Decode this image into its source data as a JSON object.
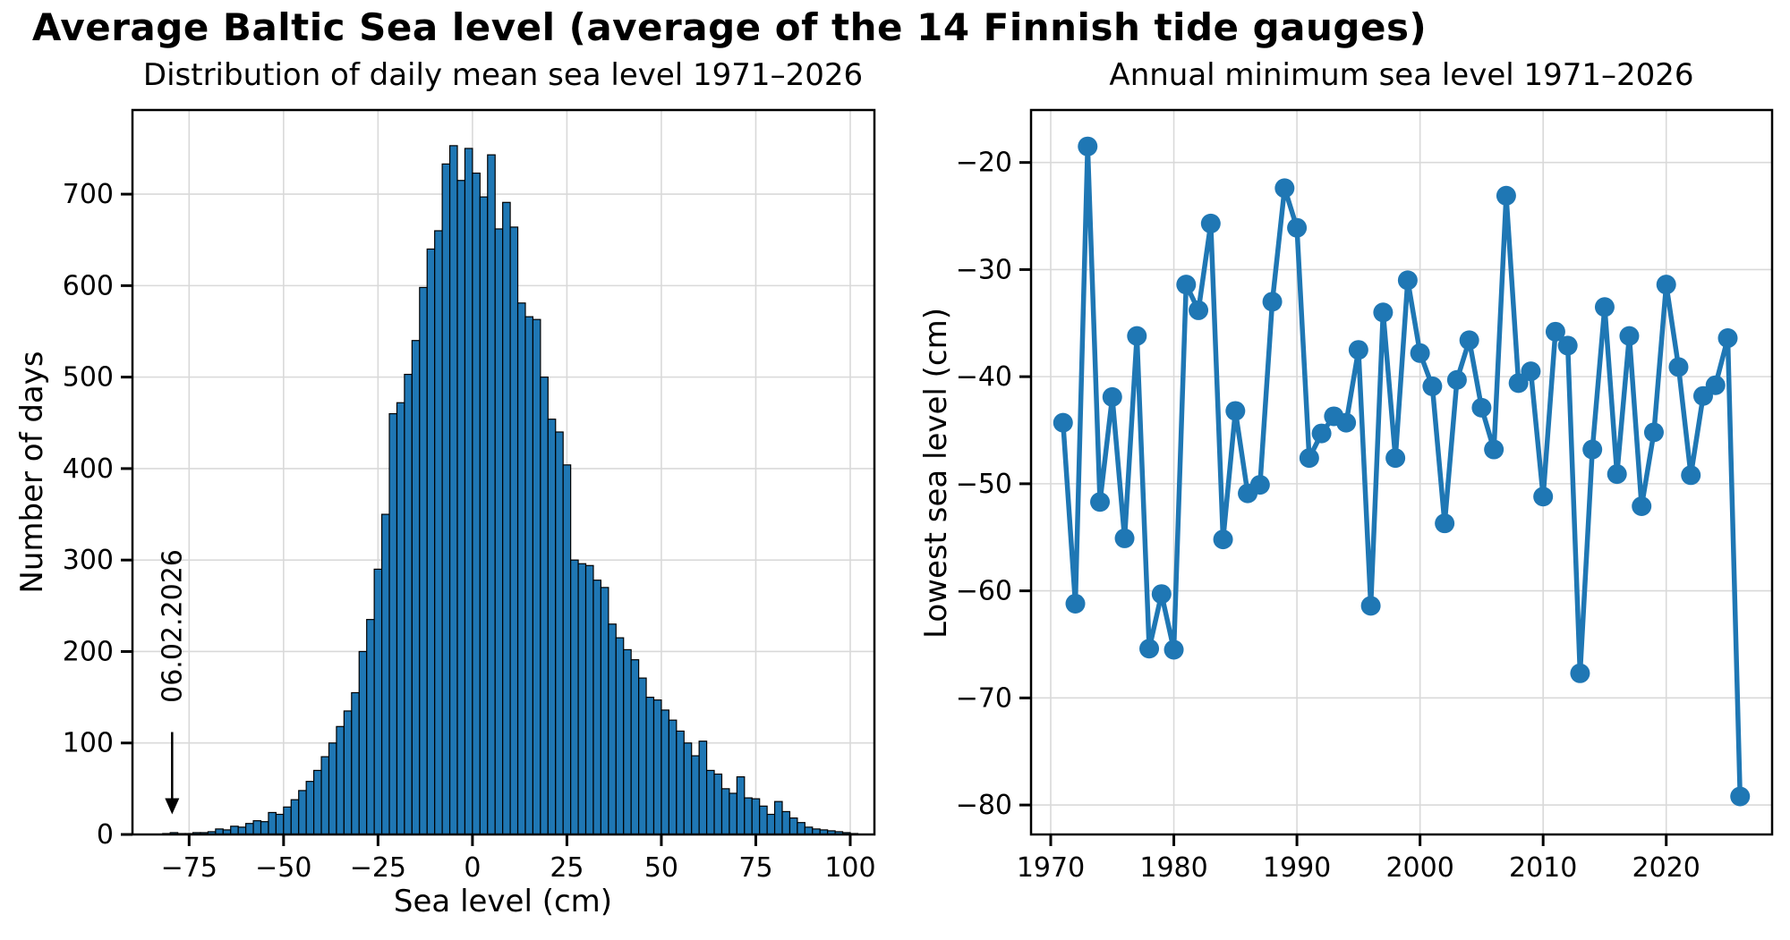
{
  "figure": {
    "title": "Average Baltic Sea level (average of the 14 Finnish tide gauges)",
    "background": "#ffffff",
    "accent_color": "#1f77b4",
    "grid_color": "#d9d9d9",
    "text_color": "#000000"
  },
  "chart_data": [
    {
      "type": "bar",
      "title": "Distribution of daily mean sea level 1971–2026",
      "xlabel": "Sea level (cm)",
      "ylabel": "Number of days",
      "xlim": [
        -90,
        106.4
      ],
      "ylim": [
        0,
        792
      ],
      "xticks": [
        -75,
        -50,
        -25,
        0,
        25,
        50,
        75,
        100
      ],
      "yticks": [
        0,
        100,
        200,
        300,
        400,
        500,
        600,
        700
      ],
      "grid": true,
      "bar_color": "#1f77b4",
      "bar_edge_color": "#000000",
      "bin_width": 2,
      "bin_start": -81,
      "bin_centers_note": "centers from -81 to 101 step 2",
      "values": [
        1,
        2,
        1,
        1,
        2,
        2,
        3,
        6,
        5,
        9,
        8,
        12,
        15,
        14,
        24,
        22,
        30,
        38,
        48,
        58,
        70,
        85,
        100,
        118,
        135,
        155,
        200,
        235,
        290,
        350,
        460,
        472,
        503,
        540,
        598,
        640,
        660,
        733,
        753,
        715,
        750,
        723,
        697,
        743,
        662,
        691,
        664,
        581,
        566,
        563,
        500,
        454,
        440,
        404,
        300,
        296,
        294,
        278,
        270,
        230,
        215,
        202,
        191,
        171,
        150,
        147,
        136,
        125,
        113,
        100,
        86,
        102,
        70,
        66,
        50,
        45,
        63,
        40,
        39,
        31,
        22,
        36,
        25,
        18,
        13,
        8,
        6,
        5,
        4,
        3,
        2,
        1
      ],
      "annotation": {
        "text": "06.02.2026",
        "x": -79.5,
        "arrow_from_days": 112,
        "arrow_to_days": 22
      }
    },
    {
      "type": "line",
      "title": "Annual minimum sea level 1971–2026",
      "xlabel": "",
      "ylabel": "Lowest sea level (cm)",
      "xlim": [
        1968.4,
        2028.6
      ],
      "ylim": [
        -82.75,
        -15.1
      ],
      "xticks": [
        1970,
        1980,
        1990,
        2000,
        2010,
        2020
      ],
      "yticks": [
        -20,
        -30,
        -40,
        -50,
        -60,
        -70,
        -80
      ],
      "grid": true,
      "line_color": "#1f77b4",
      "marker": "o",
      "x_start": 1971,
      "x": [
        1971,
        1972,
        1973,
        1974,
        1975,
        1976,
        1977,
        1978,
        1979,
        1980,
        1981,
        1982,
        1983,
        1984,
        1985,
        1986,
        1987,
        1988,
        1989,
        1990,
        1991,
        1992,
        1993,
        1994,
        1995,
        1996,
        1997,
        1998,
        1999,
        2000,
        2001,
        2002,
        2003,
        2004,
        2005,
        2006,
        2007,
        2008,
        2009,
        2010,
        2011,
        2012,
        2013,
        2014,
        2015,
        2016,
        2017,
        2018,
        2019,
        2020,
        2021,
        2022,
        2023,
        2024,
        2025,
        2026
      ],
      "y": [
        -44.3,
        -61.2,
        -18.5,
        -51.7,
        -41.9,
        -55.1,
        -36.2,
        -65.4,
        -60.3,
        -65.5,
        -31.4,
        -33.8,
        -25.7,
        -55.2,
        -43.2,
        -50.9,
        -50.1,
        -33.0,
        -22.4,
        -26.1,
        -47.6,
        -45.3,
        -43.7,
        -44.3,
        -37.5,
        -61.4,
        -34.0,
        -47.6,
        -31.0,
        -37.8,
        -40.9,
        -53.7,
        -40.3,
        -36.6,
        -42.9,
        -46.8,
        -23.1,
        -40.6,
        -39.5,
        -51.2,
        -35.8,
        -37.1,
        -67.7,
        -46.8,
        -33.5,
        -49.1,
        -36.2,
        -52.1,
        -45.2,
        -31.4,
        -39.1,
        -49.2,
        -41.8,
        -40.8,
        -36.4,
        -79.2
      ]
    }
  ]
}
